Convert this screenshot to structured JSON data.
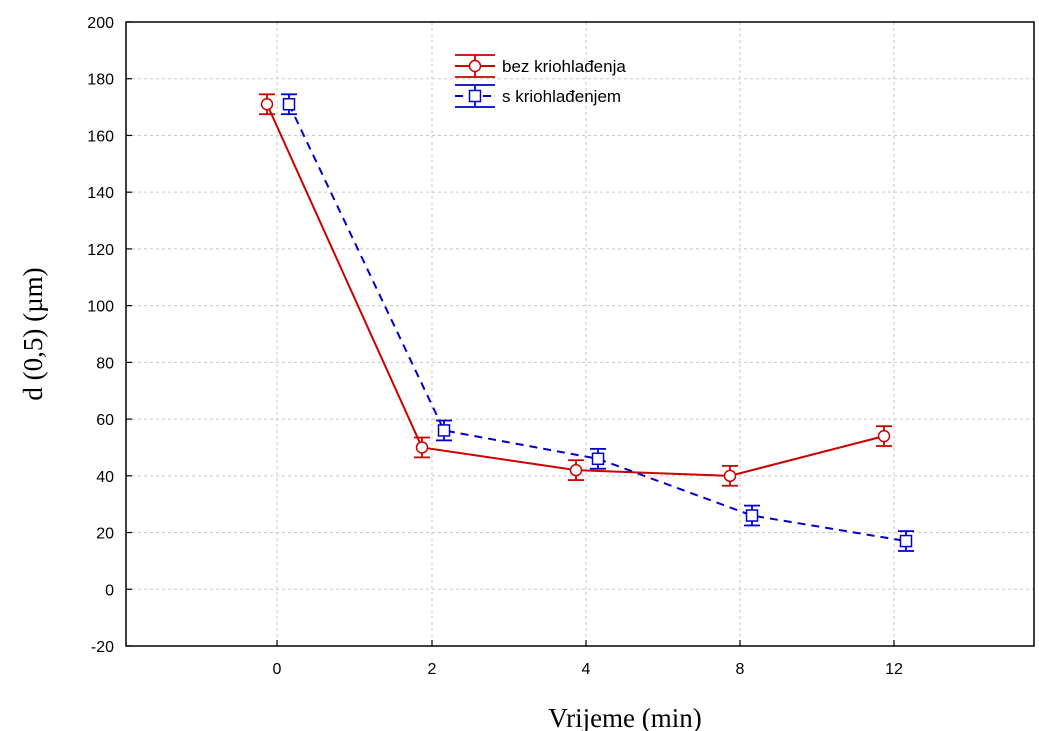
{
  "chart_data": {
    "type": "line",
    "xlabel": "Vrijeme (min)",
    "ylabel": "d (0,5) (µm)",
    "categories": [
      "0",
      "2",
      "4",
      "8",
      "12"
    ],
    "ylim": [
      -20,
      200
    ],
    "yticks": [
      -20,
      0,
      20,
      40,
      60,
      80,
      100,
      120,
      140,
      160,
      180,
      200
    ],
    "grid": true,
    "legend_position": "top-center",
    "series": [
      {
        "name": "bez kriohlađenja",
        "color": "#cc0000",
        "line_style": "solid",
        "marker": "circle",
        "values": [
          171,
          50,
          42,
          40,
          54
        ],
        "error": [
          3.5,
          3.5,
          3.5,
          3.5,
          3.5
        ]
      },
      {
        "name": "s kriohlađenjem",
        "color": "#0000cc",
        "line_style": "dashed",
        "marker": "square",
        "values": [
          171,
          56,
          46,
          26,
          17
        ],
        "error": [
          3.5,
          3.5,
          3.5,
          3.5,
          3.5
        ]
      }
    ]
  }
}
